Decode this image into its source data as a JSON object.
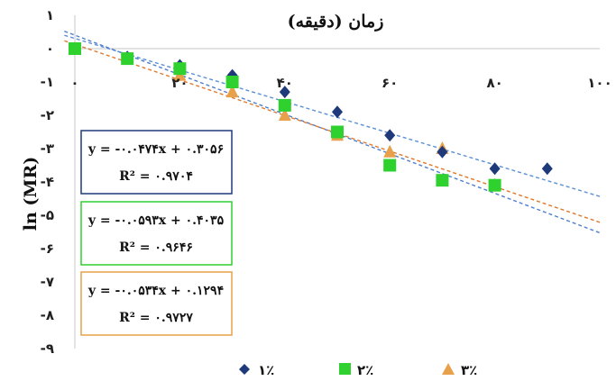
{
  "chart_data": {
    "type": "scatter",
    "title": "",
    "xlabel": "زمان (دقیقه)",
    "ylabel": "ln (MR)",
    "xlim": [
      0,
      100
    ],
    "ylim": [
      -9,
      1
    ],
    "x_ticks": [
      "۰",
      "۲۰",
      "۴۰",
      "۶۰",
      "۸۰",
      "۱۰۰"
    ],
    "y_ticks": [
      "۱",
      "۰",
      "-۱",
      "-۲",
      "-۳",
      "-۴",
      "-۵",
      "-۶",
      "-۷",
      "-۸",
      "-۹"
    ],
    "grid": false,
    "legend_position": "bottom",
    "series": [
      {
        "name": "۱٪",
        "color": "#1f3a7a",
        "marker": "diamond",
        "trendline_color": "#5b8fd6",
        "x": [
          0,
          10,
          20,
          30,
          40,
          50,
          60,
          70,
          80,
          90
        ],
        "y": [
          0,
          -0.25,
          -0.5,
          -0.8,
          -1.3,
          -1.9,
          -2.6,
          -3.1,
          -3.6,
          -3.6
        ],
        "equation": "y = -۰.۰۴۷۴x + ۰.۳۰۵۶",
        "r2": "R² = ۰.۹۷۰۴",
        "trend": {
          "slope": -0.0474,
          "intercept": 0.3056
        }
      },
      {
        "name": "۲٪",
        "color": "#2fd12f",
        "marker": "square",
        "trendline_color": "#4e7fcc",
        "x": [
          0,
          10,
          20,
          30,
          40,
          50,
          60,
          70,
          80
        ],
        "y": [
          0,
          -0.3,
          -0.6,
          -1.0,
          -1.7,
          -2.5,
          -3.5,
          -3.95,
          -4.1
        ],
        "equation": "y = -۰.۰۵۹۳x + ۰.۴۰۳۵",
        "r2": "R² = ۰.۹۶۴۶",
        "trend": {
          "slope": -0.0593,
          "intercept": 0.4035
        }
      },
      {
        "name": "۳٪",
        "color": "#e8a04a",
        "marker": "triangle",
        "trendline_color": "#e07a2e",
        "x": [
          0,
          10,
          20,
          30,
          40,
          50,
          60,
          70,
          80
        ],
        "y": [
          0,
          -0.3,
          -0.8,
          -1.3,
          -2.0,
          -2.6,
          -3.1,
          -3.0,
          -4.1
        ],
        "equation": "y = -۰.۰۵۳۴x + ۰.۱۲۹۴",
        "r2": "R² = ۰.۹۷۲۷",
        "trend": {
          "slope": -0.0534,
          "intercept": 0.1294
        }
      }
    ]
  }
}
